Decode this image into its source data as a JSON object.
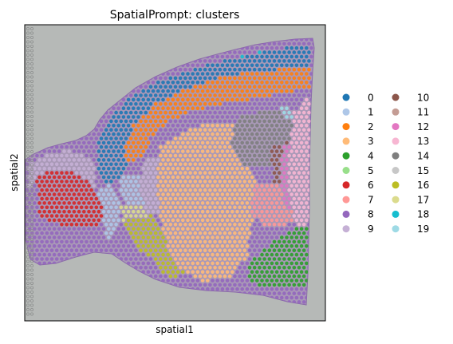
{
  "chart_data": {
    "type": "scatter",
    "title": "SpatialPrompt: clusters",
    "xlabel": "spatial1",
    "ylabel": "spatial2",
    "grid": false,
    "ticks": false,
    "background_image": "tissue-section-photo",
    "legend_position": "right-outside",
    "legend_columns": 2,
    "series": [
      {
        "name": "0",
        "color": "#1f77b4"
      },
      {
        "name": "1",
        "color": "#aec7e8"
      },
      {
        "name": "2",
        "color": "#ff7f0e"
      },
      {
        "name": "3",
        "color": "#ffbb78"
      },
      {
        "name": "4",
        "color": "#2ca02c"
      },
      {
        "name": "5",
        "color": "#98df8a"
      },
      {
        "name": "6",
        "color": "#d62728"
      },
      {
        "name": "7",
        "color": "#ff9896"
      },
      {
        "name": "8",
        "color": "#9467bd"
      },
      {
        "name": "9",
        "color": "#c5b0d5"
      },
      {
        "name": "10",
        "color": "#8c564b"
      },
      {
        "name": "11",
        "color": "#c49c94"
      },
      {
        "name": "12",
        "color": "#e377c2"
      },
      {
        "name": "13",
        "color": "#f7b6d2"
      },
      {
        "name": "14",
        "color": "#7f7f7f"
      },
      {
        "name": "15",
        "color": "#c7c7c7"
      },
      {
        "name": "16",
        "color": "#bcbd22"
      },
      {
        "name": "17",
        "color": "#dbdb8d"
      },
      {
        "name": "18",
        "color": "#17becf"
      },
      {
        "name": "19",
        "color": "#9edae5"
      }
    ]
  }
}
